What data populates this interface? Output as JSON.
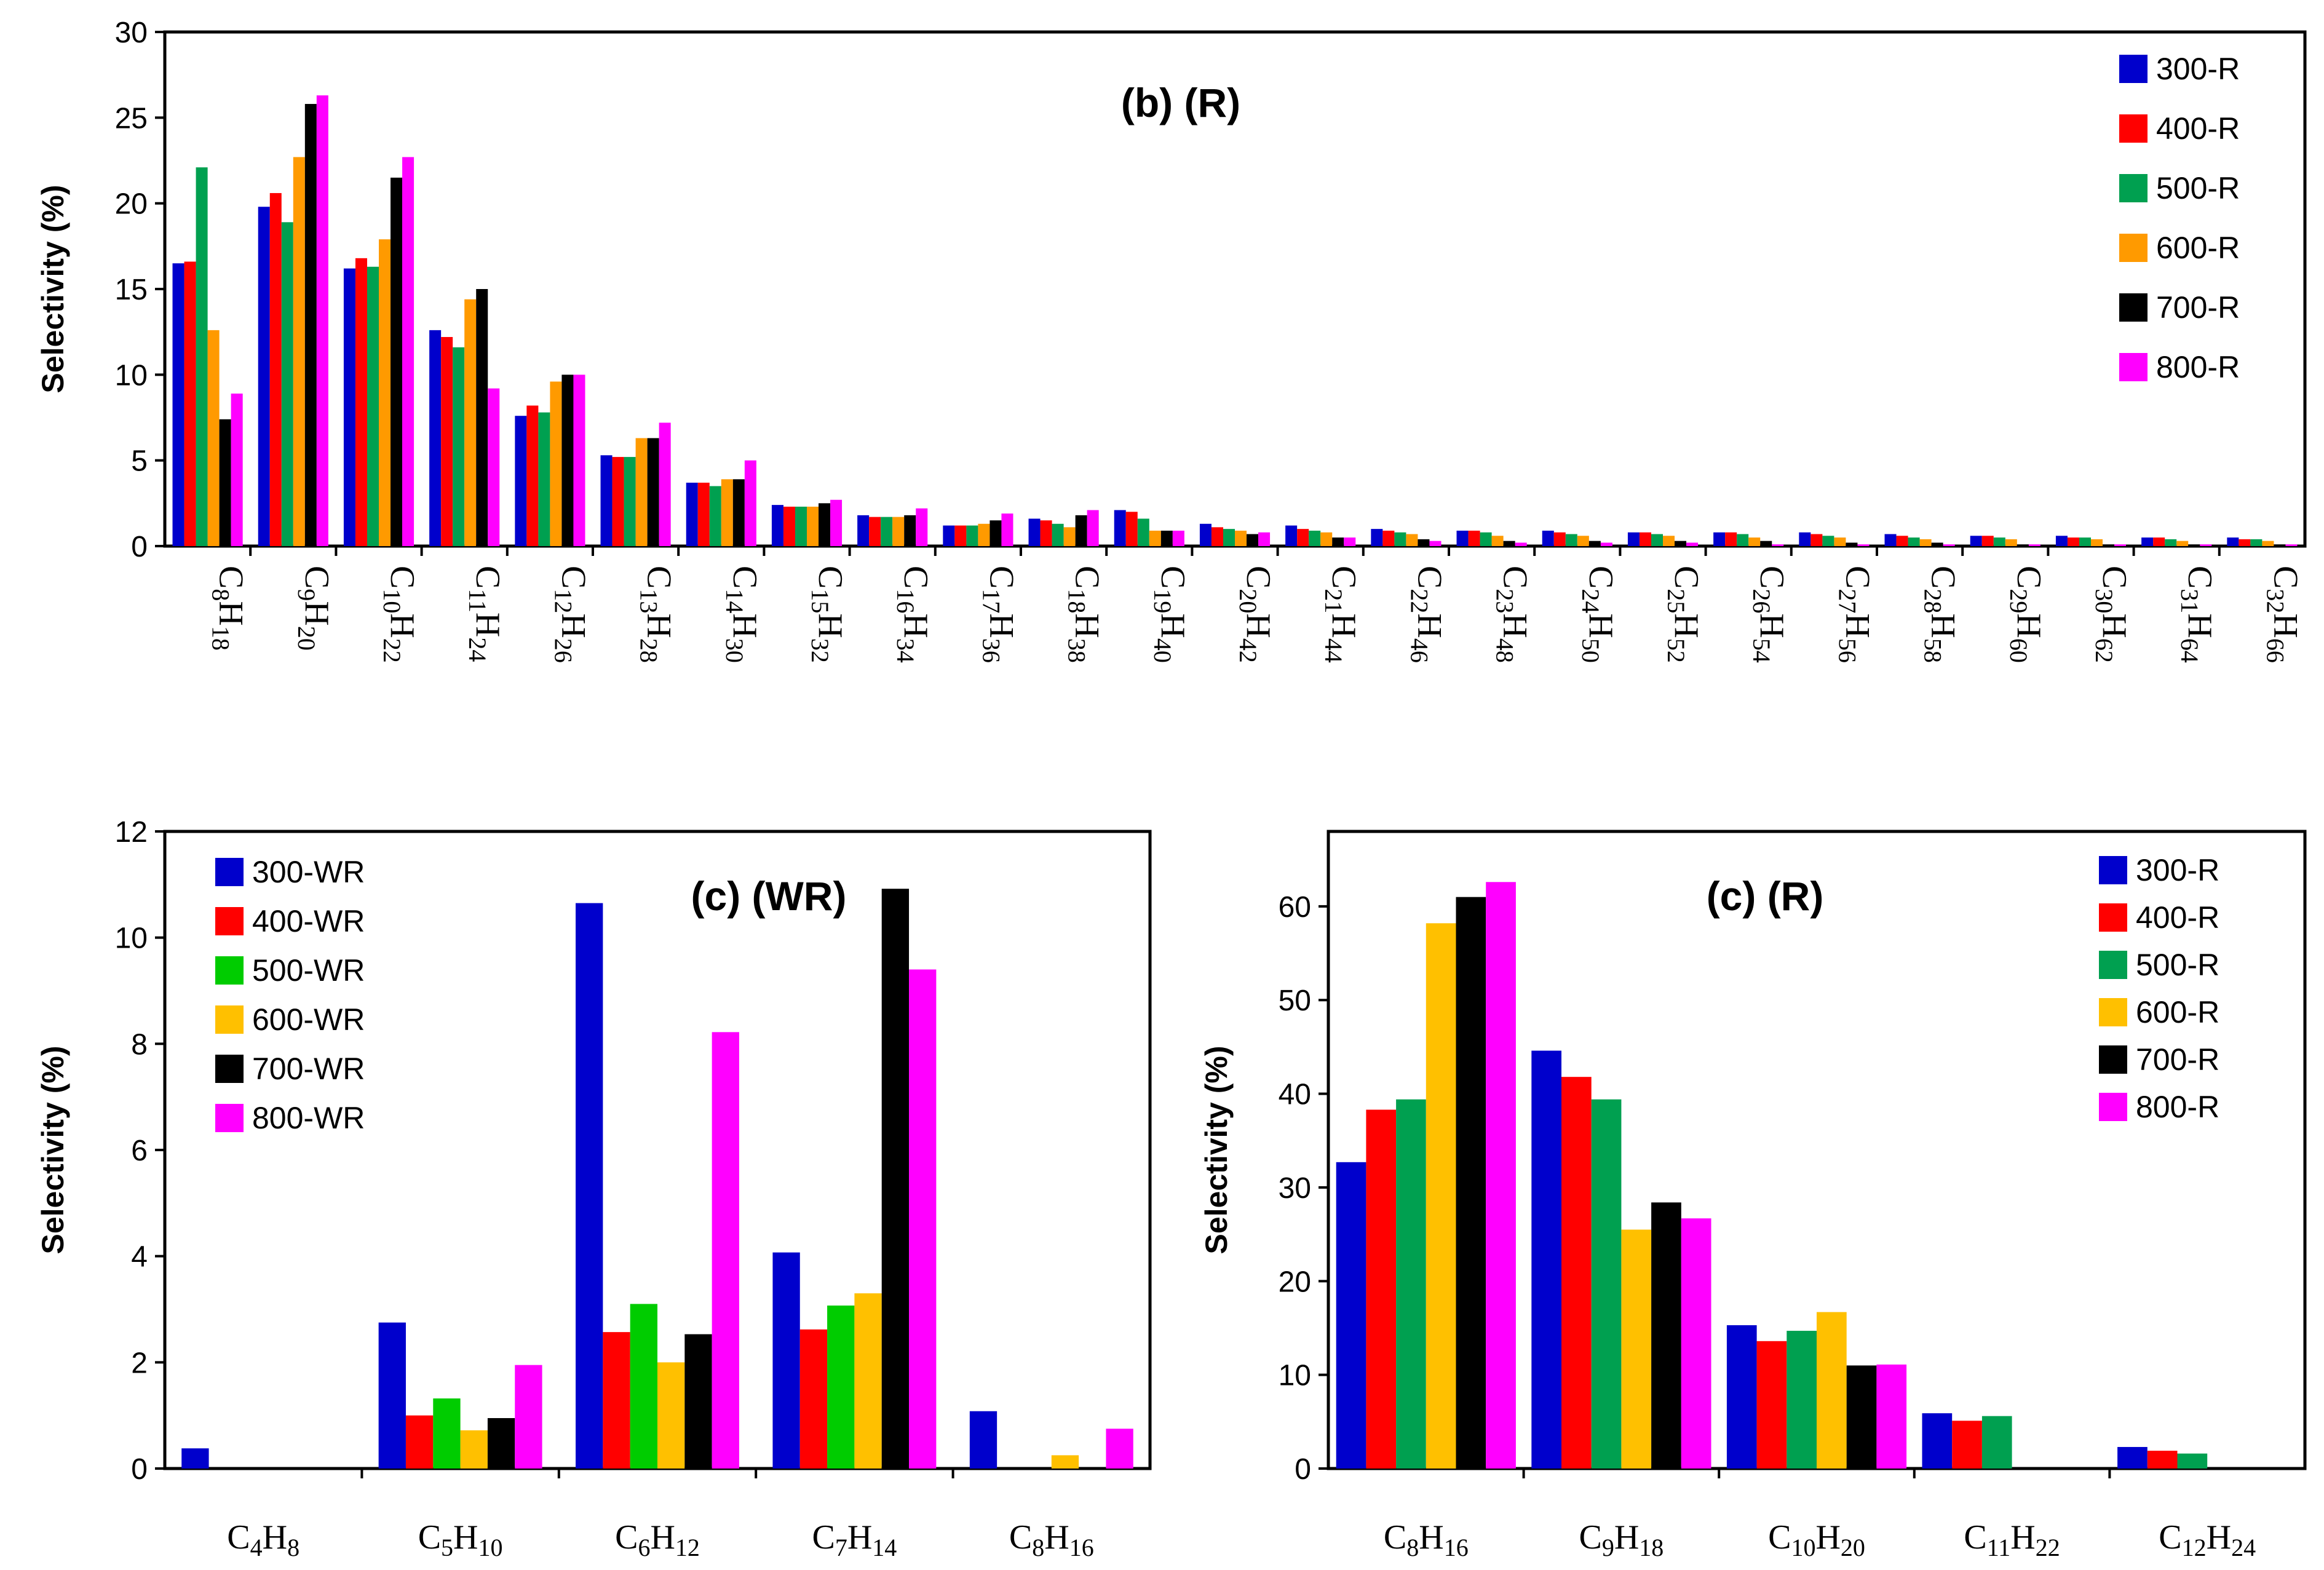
{
  "chart_data": [
    {
      "id": "b",
      "type": "bar",
      "title": "(b) (R)",
      "xlabel": "",
      "ylabel": "Selectivity (%)",
      "ylim": [
        0,
        30
      ],
      "yticks": [
        0,
        5,
        10,
        15,
        20,
        25,
        30
      ],
      "legend_position": "top-right",
      "categories": [
        {
          "c": "8",
          "h": "18"
        },
        {
          "c": "9",
          "h": "20"
        },
        {
          "c": "10",
          "h": "22"
        },
        {
          "c": "11",
          "h": "24"
        },
        {
          "c": "12",
          "h": "26"
        },
        {
          "c": "13",
          "h": "28"
        },
        {
          "c": "14",
          "h": "30"
        },
        {
          "c": "15",
          "h": "32"
        },
        {
          "c": "16",
          "h": "34"
        },
        {
          "c": "17",
          "h": "36"
        },
        {
          "c": "18",
          "h": "38"
        },
        {
          "c": "19",
          "h": "40"
        },
        {
          "c": "20",
          "h": "42"
        },
        {
          "c": "21",
          "h": "44"
        },
        {
          "c": "22",
          "h": "46"
        },
        {
          "c": "23",
          "h": "48"
        },
        {
          "c": "24",
          "h": "50"
        },
        {
          "c": "25",
          "h": "52"
        },
        {
          "c": "26",
          "h": "54"
        },
        {
          "c": "27",
          "h": "56"
        },
        {
          "c": "28",
          "h": "58"
        },
        {
          "c": "29",
          "h": "60"
        },
        {
          "c": "30",
          "h": "62"
        },
        {
          "c": "31",
          "h": "64"
        },
        {
          "c": "32",
          "h": "66"
        }
      ],
      "series": [
        {
          "name": "300-R",
          "color": "#0000cc",
          "values": [
            16.5,
            19.8,
            16.2,
            12.6,
            7.6,
            5.3,
            3.7,
            2.4,
            1.8,
            1.2,
            1.6,
            2.1,
            1.3,
            1.2,
            1.0,
            0.9,
            0.9,
            0.8,
            0.8,
            0.8,
            0.7,
            0.6,
            0.6,
            0.5,
            0.5
          ]
        },
        {
          "name": "400-R",
          "color": "#ff0000",
          "values": [
            16.6,
            20.6,
            16.8,
            12.2,
            8.2,
            5.2,
            3.7,
            2.3,
            1.7,
            1.2,
            1.5,
            2.0,
            1.1,
            1.0,
            0.9,
            0.9,
            0.8,
            0.8,
            0.8,
            0.7,
            0.6,
            0.6,
            0.5,
            0.5,
            0.4
          ]
        },
        {
          "name": "500-R",
          "color": "#00a050",
          "values": [
            22.1,
            18.9,
            16.3,
            11.6,
            7.8,
            5.2,
            3.5,
            2.3,
            1.7,
            1.2,
            1.3,
            1.6,
            1.0,
            0.9,
            0.8,
            0.8,
            0.7,
            0.7,
            0.7,
            0.6,
            0.5,
            0.5,
            0.5,
            0.4,
            0.4
          ]
        },
        {
          "name": "600-R",
          "color": "#ff9a00",
          "values": [
            12.6,
            22.7,
            17.9,
            14.4,
            9.6,
            6.3,
            3.9,
            2.3,
            1.7,
            1.3,
            1.1,
            0.9,
            0.9,
            0.8,
            0.7,
            0.6,
            0.6,
            0.6,
            0.5,
            0.5,
            0.4,
            0.4,
            0.4,
            0.3,
            0.3
          ]
        },
        {
          "name": "700-R",
          "color": "#000000",
          "values": [
            7.4,
            25.8,
            21.5,
            15.0,
            10.0,
            6.3,
            3.9,
            2.5,
            1.8,
            1.5,
            1.8,
            0.9,
            0.7,
            0.5,
            0.4,
            0.3,
            0.3,
            0.3,
            0.3,
            0.2,
            0.2,
            0.1,
            0.1,
            0.1,
            0.1
          ]
        },
        {
          "name": "800-R",
          "color": "#ff00ff",
          "values": [
            8.9,
            26.3,
            22.7,
            9.2,
            10.0,
            7.2,
            5.0,
            2.7,
            2.2,
            1.9,
            2.1,
            0.9,
            0.8,
            0.5,
            0.3,
            0.2,
            0.2,
            0.2,
            0.1,
            0.1,
            0.1,
            0.1,
            0.1,
            0.1,
            0.1
          ]
        }
      ]
    },
    {
      "id": "c-wr",
      "type": "bar",
      "title": "(c) (WR)",
      "xlabel": "",
      "ylabel": "Selectivity (%)",
      "ylim": [
        0,
        12
      ],
      "yticks": [
        0,
        2,
        4,
        6,
        8,
        10,
        12
      ],
      "legend_position": "top-left",
      "categories": [
        {
          "c": "4",
          "h": "8"
        },
        {
          "c": "5",
          "h": "10"
        },
        {
          "c": "6",
          "h": "12"
        },
        {
          "c": "7",
          "h": "14"
        },
        {
          "c": "8",
          "h": "16"
        }
      ],
      "series": [
        {
          "name": "300-WR",
          "color": "#0000cc",
          "values": [
            0.38,
            2.75,
            10.65,
            4.07,
            1.08
          ]
        },
        {
          "name": "400-WR",
          "color": "#ff0000",
          "values": [
            0,
            1.0,
            2.57,
            2.62,
            0
          ]
        },
        {
          "name": "500-WR",
          "color": "#00cc00",
          "values": [
            0,
            1.32,
            3.1,
            3.07,
            0
          ]
        },
        {
          "name": "600-WR",
          "color": "#ffc000",
          "values": [
            0,
            0.72,
            2.0,
            3.3,
            0.25
          ]
        },
        {
          "name": "700-WR",
          "color": "#000000",
          "values": [
            0,
            0.95,
            2.53,
            10.92,
            0
          ]
        },
        {
          "name": "800-WR",
          "color": "#ff00ff",
          "values": [
            0,
            1.95,
            8.22,
            9.4,
            0.75
          ]
        }
      ]
    },
    {
      "id": "c-r",
      "type": "bar",
      "title": "(c) (R)",
      "xlabel": "",
      "ylabel": "Selectivity (%)",
      "ylim": [
        0,
        68
      ],
      "yticks": [
        0,
        10,
        20,
        30,
        40,
        50,
        60
      ],
      "legend_position": "top-right",
      "categories": [
        {
          "c": "8",
          "h": "16"
        },
        {
          "c": "9",
          "h": "18"
        },
        {
          "c": "10",
          "h": "20"
        },
        {
          "c": "11",
          "h": "22"
        },
        {
          "c": "12",
          "h": "24"
        }
      ],
      "series": [
        {
          "name": "300-R",
          "color": "#0000cc",
          "values": [
            32.7,
            44.6,
            15.3,
            5.9,
            2.3
          ]
        },
        {
          "name": "400-R",
          "color": "#ff0000",
          "values": [
            38.3,
            41.8,
            13.6,
            5.1,
            1.9
          ]
        },
        {
          "name": "500-R",
          "color": "#00a050",
          "values": [
            39.4,
            39.4,
            14.7,
            5.6,
            1.6
          ]
        },
        {
          "name": "600-R",
          "color": "#ffc000",
          "values": [
            58.2,
            25.5,
            16.7,
            0,
            0
          ]
        },
        {
          "name": "700-R",
          "color": "#000000",
          "values": [
            61.0,
            28.4,
            11.0,
            0,
            0
          ]
        },
        {
          "name": "800-R",
          "color": "#ff00ff",
          "values": [
            62.6,
            26.7,
            11.1,
            0,
            0
          ]
        }
      ]
    }
  ]
}
